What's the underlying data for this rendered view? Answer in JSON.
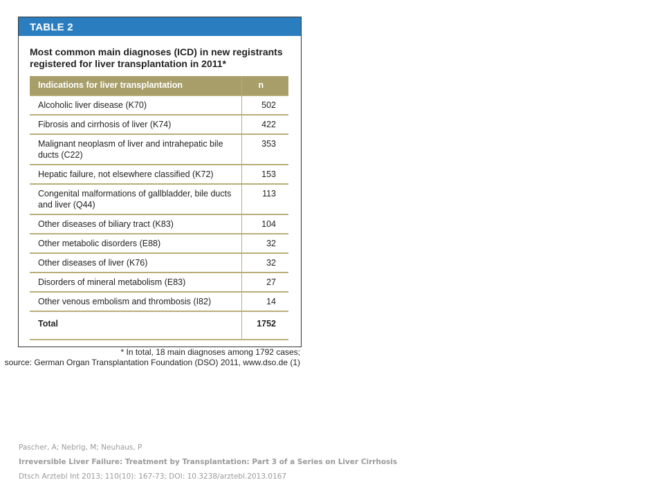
{
  "table": {
    "label": "TABLE 2",
    "title": "Most common main diagnoses (ICD) in new registrants registered for liver transplantation in 2011*",
    "col_indication": "Indications for liver transplantation",
    "col_n": "n",
    "rows": [
      {
        "label": "Alcoholic liver disease (K70)",
        "n": "502"
      },
      {
        "label": "Fibrosis and cirrhosis of liver (K74)",
        "n": "422"
      },
      {
        "label": "Malignant neoplasm of liver and intrahepatic bile ducts (C22)",
        "n": "353"
      },
      {
        "label": "Hepatic failure, not elsewhere classified (K72)",
        "n": "153"
      },
      {
        "label": "Congenital malformations of gallbladder, bile ducts and liver (Q44)",
        "n": "113"
      },
      {
        "label": "Other diseases of biliary tract (K83)",
        "n": "104"
      },
      {
        "label": "Other metabolic disorders (E88)",
        "n": "32"
      },
      {
        "label": "Other diseases of liver (K76)",
        "n": "32"
      },
      {
        "label": "Disorders of mineral metabolism (E83)",
        "n": "27"
      },
      {
        "label": "Other venous embolism and thrombosis (I82)",
        "n": "14"
      }
    ],
    "total_label": "Total",
    "total_n": "1752",
    "footnote_line1": "* In total, 18 main diagnoses among 1792 cases;",
    "footnote_line2": "source: German Organ Transplantation Foundation (DSO) 2011, www.dso.de (1)"
  },
  "citation": {
    "authors": "Pascher, A; Nebrig, M; Neuhaus, P",
    "article": "Irreversible Liver Failure: Treatment by Transplantation:  Part 3 of a Series on Liver Cirrhosis",
    "journal": "Dtsch Arztebl Int 2013; 110(10): 167-73; DOI: 10.3238/arztebl.2013.0167"
  }
}
